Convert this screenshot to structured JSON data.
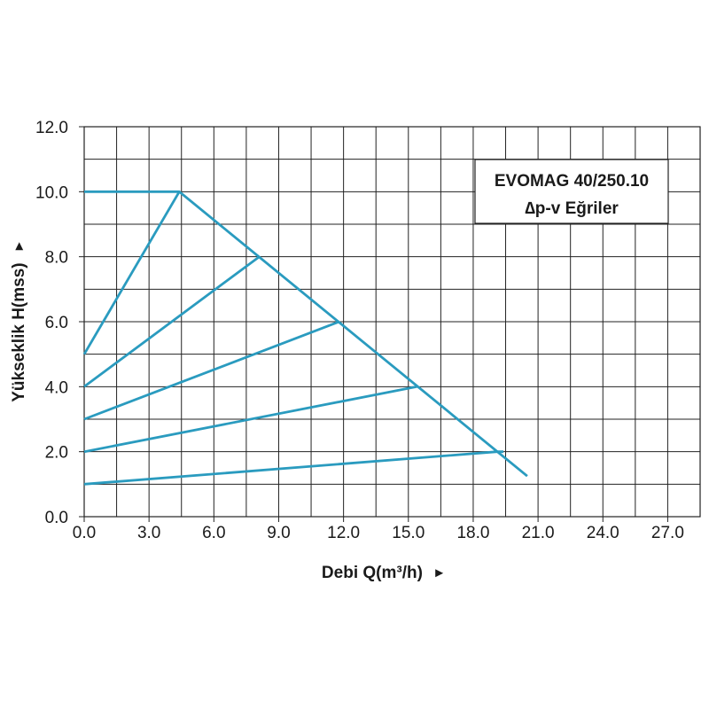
{
  "chart_data": {
    "type": "line",
    "xlabel": "Debi Q(m³/h)",
    "xlabel_arrow": "►",
    "ylabel": "Yükseklik H(mss)",
    "ylabel_arrow": "►",
    "xlim": [
      0,
      28.5
    ],
    "ylim": [
      0,
      12
    ],
    "x_ticks": [
      "0.0",
      "3.0",
      "6.0",
      "9.0",
      "12.0",
      "15.0",
      "18.0",
      "21.0",
      "24.0",
      "27.0"
    ],
    "x_tick_values": [
      0,
      3,
      6,
      9,
      12,
      15,
      18,
      21,
      24,
      27
    ],
    "y_ticks": [
      "0.0",
      "2.0",
      "4.0",
      "6.0",
      "8.0",
      "10.0",
      "12.0"
    ],
    "y_tick_values": [
      0,
      2,
      4,
      6,
      8,
      10,
      12
    ],
    "x_minor_step": 1.5,
    "y_minor_step": 1,
    "grid": true,
    "colors": {
      "curve": "#2a9bbf",
      "grid": "#222222",
      "text": "#1a1a1a"
    },
    "legend_box": {
      "title": "EVOMAG 40/250.10",
      "subtitle": "∆p-v Eğriler",
      "placement": "top-right"
    },
    "series": [
      {
        "points": [
          [
            0,
            10
          ],
          [
            4.4,
            10
          ],
          [
            20.5,
            1.25
          ]
        ]
      },
      {
        "points": [
          [
            0,
            5
          ],
          [
            4.4,
            10
          ]
        ]
      },
      {
        "points": [
          [
            0,
            4
          ],
          [
            8.1,
            8
          ]
        ]
      },
      {
        "points": [
          [
            0,
            3
          ],
          [
            11.8,
            6
          ]
        ]
      },
      {
        "points": [
          [
            0,
            2
          ],
          [
            15.4,
            4
          ]
        ]
      },
      {
        "points": [
          [
            0,
            1
          ],
          [
            19.1,
            2
          ],
          [
            19.4,
            2
          ]
        ]
      }
    ]
  }
}
